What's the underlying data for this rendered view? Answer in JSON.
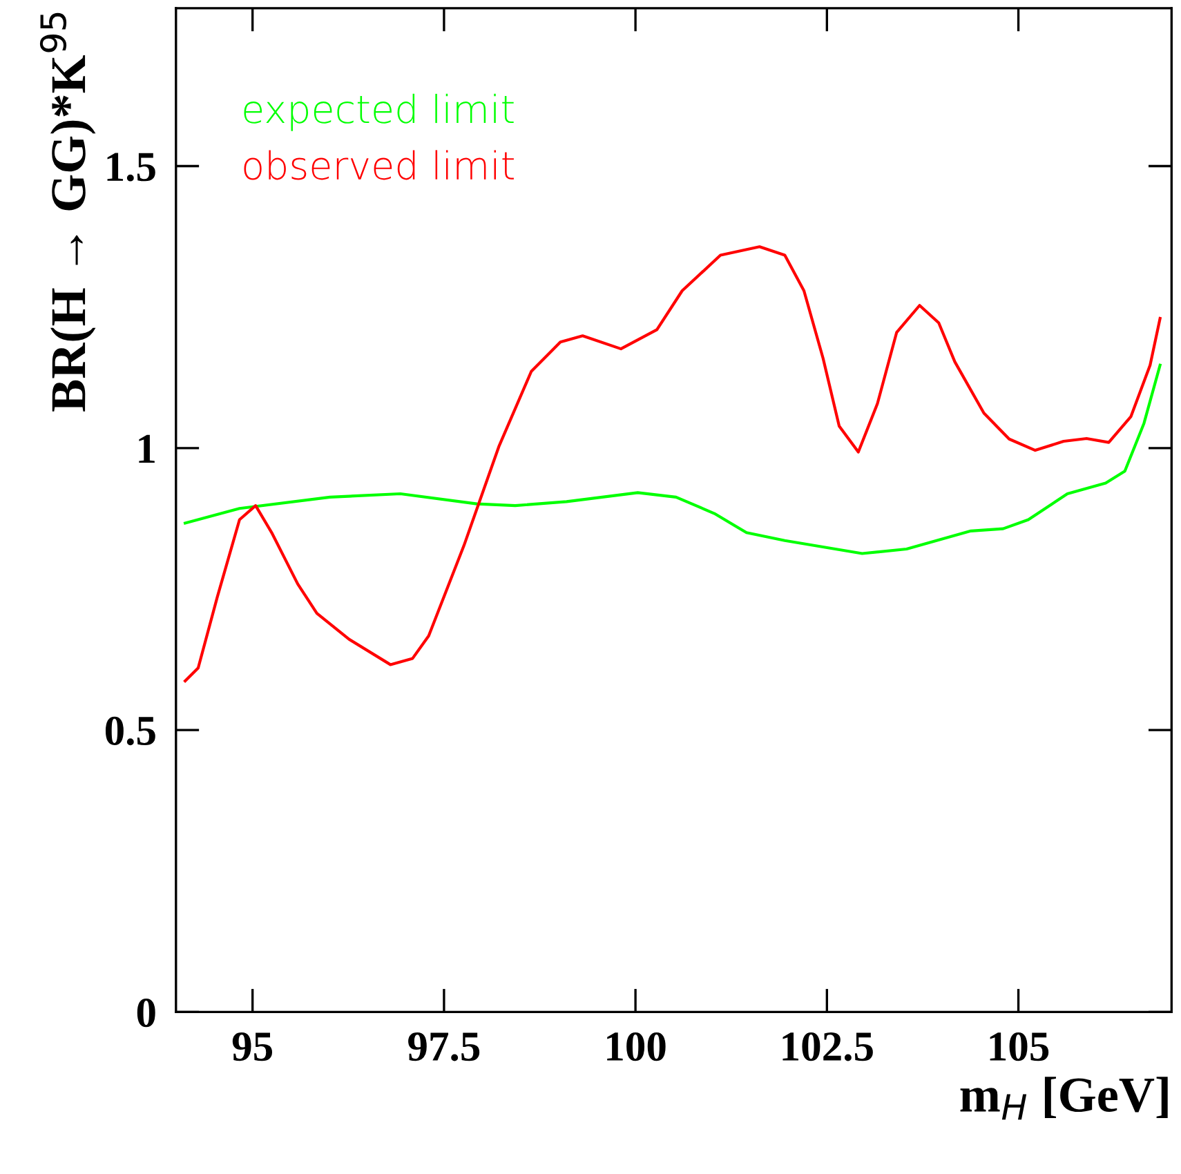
{
  "chart_data": {
    "type": "line",
    "xlabel": "m$_{H}$ [GeV]",
    "ylabel": "BR(H → GG)*K$^{95}$",
    "xlim": [
      94,
      107
    ],
    "ylim": [
      0,
      1.78
    ],
    "xticks": [
      95,
      97.5,
      100,
      102.5,
      105
    ],
    "yticks": [
      0,
      0.5,
      1,
      1.5
    ],
    "legend": "top left",
    "grid": false,
    "marker": "none",
    "line_style": "solid",
    "series": [
      {
        "name": "expected limit",
        "color": "#00ff00",
        "x": [
          94.12,
          94.83,
          96.01,
          96.93,
          97.93,
          98.43,
          99.1,
          100.03,
          100.53,
          101.03,
          101.45,
          101.95,
          102.96,
          103.54,
          104.38,
          104.8,
          105.13,
          105.64,
          106.14,
          106.39,
          106.64,
          106.85
        ],
        "values": [
          0.867,
          0.893,
          0.913,
          0.919,
          0.901,
          0.898,
          0.905,
          0.921,
          0.913,
          0.884,
          0.85,
          0.836,
          0.813,
          0.821,
          0.853,
          0.857,
          0.873,
          0.919,
          0.938,
          0.959,
          1.044,
          1.147
        ]
      },
      {
        "name": "observed limit",
        "color": "#ff0000",
        "x": [
          94.12,
          94.29,
          94.54,
          94.83,
          95.04,
          95.25,
          95.59,
          95.84,
          96.26,
          96.8,
          97.09,
          97.3,
          97.76,
          98.22,
          98.64,
          99.02,
          99.31,
          99.81,
          100.28,
          100.61,
          101.11,
          101.62,
          101.95,
          102.2,
          102.45,
          102.66,
          102.91,
          103.16,
          103.41,
          103.71,
          103.96,
          104.17,
          104.55,
          104.88,
          105.22,
          105.59,
          105.89,
          106.18,
          106.47,
          106.72,
          106.85
        ],
        "values": [
          0.587,
          0.61,
          0.736,
          0.873,
          0.898,
          0.85,
          0.759,
          0.707,
          0.661,
          0.616,
          0.627,
          0.667,
          0.827,
          1.004,
          1.136,
          1.188,
          1.199,
          1.176,
          1.21,
          1.279,
          1.342,
          1.357,
          1.342,
          1.279,
          1.159,
          1.039,
          0.993,
          1.079,
          1.205,
          1.253,
          1.222,
          1.153,
          1.062,
          1.016,
          0.996,
          1.012,
          1.017,
          1.01,
          1.056,
          1.147,
          1.23
        ]
      }
    ]
  }
}
